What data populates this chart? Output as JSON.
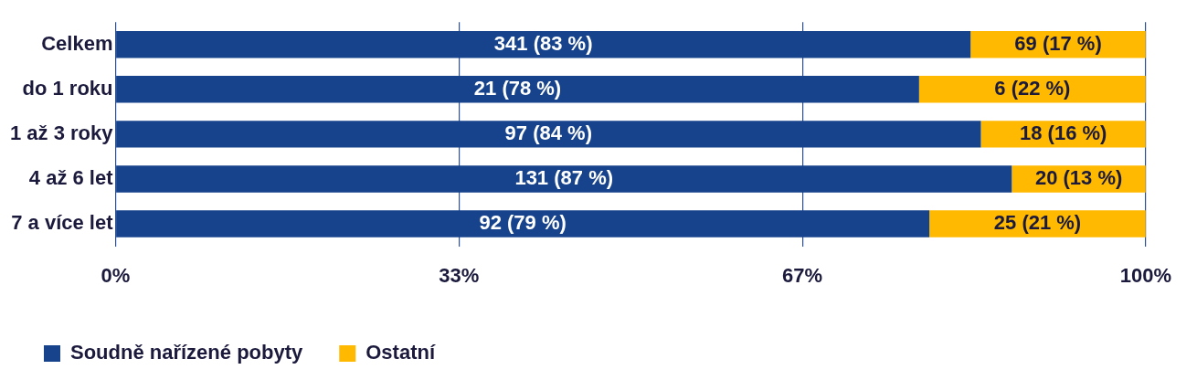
{
  "chart_data": {
    "type": "bar",
    "orientation": "horizontal",
    "stacked": true,
    "categories": [
      "Celkem",
      "do 1 roku",
      "1 až 3 roky",
      "4 až 6 let",
      "7 a více let"
    ],
    "series": [
      {
        "name": "Soudně nařízené pobyty",
        "color": "#16438c",
        "values": [
          83,
          78,
          84,
          87,
          79
        ],
        "value_labels": [
          "341 (83 %)",
          "21 (78 %)",
          "97 (84 %)",
          "131 (87 %)",
          "92 (79 %)"
        ]
      },
      {
        "name": "Ostatní",
        "color": "#ffb900",
        "values": [
          17,
          22,
          16,
          13,
          21
        ],
        "value_labels": [
          "69 (17 %)",
          "6 (22 %)",
          "18 (16 %)",
          "20 (13 %)",
          "25 (21 %)"
        ]
      }
    ],
    "xlim": [
      0,
      100
    ],
    "xticks": [
      {
        "value": 0,
        "label": "0%"
      },
      {
        "value": 33.33,
        "label": "33%"
      },
      {
        "value": 66.67,
        "label": "67%"
      },
      {
        "value": 100,
        "label": "100%"
      }
    ],
    "grid": "x",
    "legend": "bottom left"
  }
}
